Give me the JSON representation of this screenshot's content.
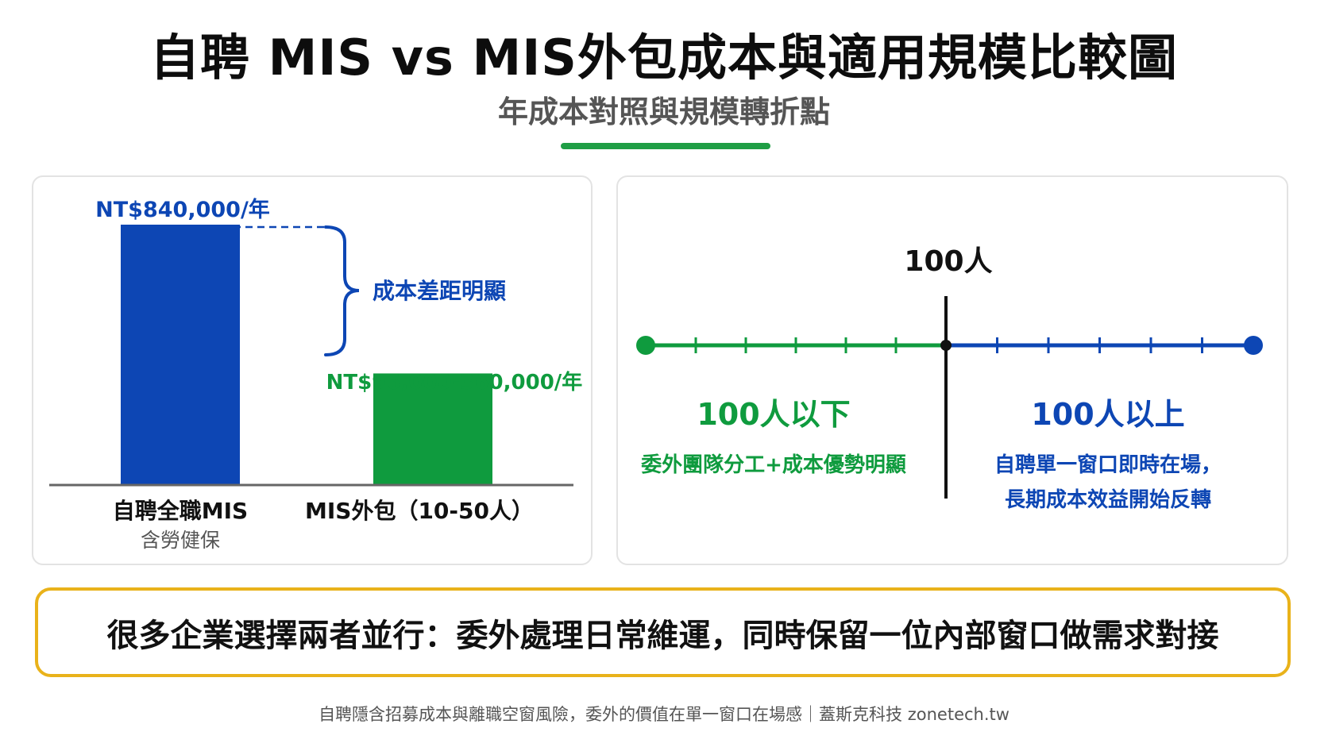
{
  "header": {
    "title": "自聘 MIS vs MIS外包成本與適用規模比較圖",
    "subtitle": "年成本對照與規模轉折點"
  },
  "colors": {
    "blue": "#0d46b4",
    "green": "#0f9b3e",
    "accent_rule": "#1f9e45",
    "callout_border": "#e9b21a"
  },
  "chart_data": [
    {
      "type": "bar",
      "categories": [
        "自聘全職MIS",
        "MIS外包（10-50人）"
      ],
      "category_sublabels": [
        "含勞健保",
        ""
      ],
      "values": [
        840000,
        360000
      ],
      "value_ranges": [
        [
          840000,
          840000
        ],
        [
          96000,
          360000
        ]
      ],
      "data_labels": [
        "NT$840,000/年",
        "NT$96,000-360,000/年"
      ],
      "bar_colors": [
        "#0d46b4",
        "#0f9b3e"
      ],
      "annotation": "成本差距明顯",
      "ylim": [
        0,
        840000
      ],
      "grid": false
    },
    {
      "type": "line",
      "breakpoint": 100,
      "breakpoint_label": "100人",
      "left_segment": {
        "heading": "100人以下",
        "text": [
          "委外團隊分工+成本優勢明顯"
        ],
        "color": "#0f9b3e",
        "ticks": 5
      },
      "right_segment": {
        "heading": "100人以上",
        "text": [
          "自聘單一窗口即時在場，",
          "長期成本效益開始反轉"
        ],
        "color": "#0d46b4",
        "ticks": 5
      }
    }
  ],
  "callout": {
    "text": "很多企業選擇兩者並行：委外處理日常維運，同時保留一位內部窗口做需求對接"
  },
  "footer": {
    "text": "自聘隱含招募成本與離職空窗風險，委外的價值在單一窗口在場感｜蓋斯克科技 zonetech.tw"
  }
}
